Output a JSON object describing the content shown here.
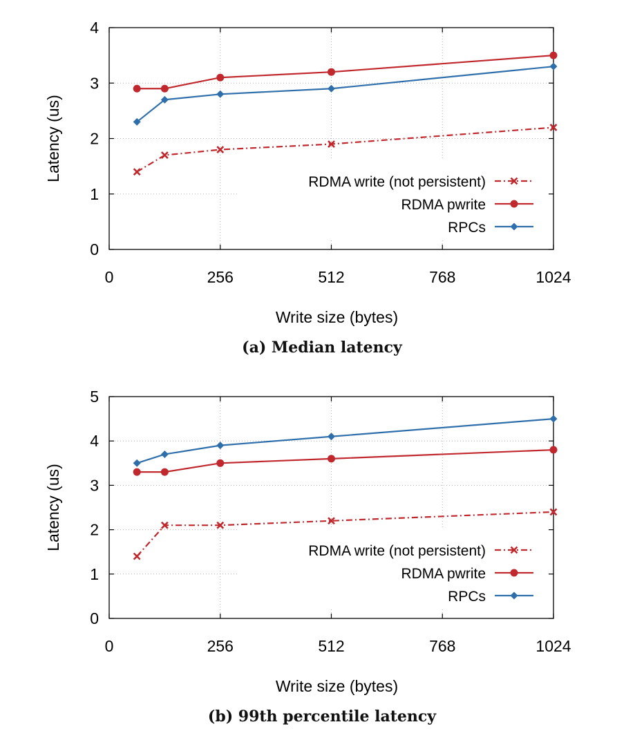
{
  "chart_data": [
    {
      "type": "line",
      "caption": "(a) Median latency",
      "xlabel": "Write size (bytes)",
      "ylabel": "Latency (us)",
      "xlim": [
        0,
        1024
      ],
      "ylim": [
        0,
        4
      ],
      "xticks": [
        "0",
        "256",
        "512",
        "768",
        "1024"
      ],
      "yticks": [
        "0",
        "1",
        "2",
        "3",
        "4"
      ],
      "grid": true,
      "legend_position": "right",
      "series": [
        {
          "name": "RDMA write (not persistent)",
          "color": "#c0282d",
          "marker": "x",
          "dash": "dashdot",
          "x": [
            64,
            128,
            256,
            512,
            1024
          ],
          "values": [
            1.4,
            1.7,
            1.8,
            1.9,
            2.2
          ]
        },
        {
          "name": "RDMA pwrite",
          "color": "#c0282d",
          "marker": "circle",
          "dash": "solid",
          "x": [
            64,
            128,
            256,
            512,
            1024
          ],
          "values": [
            2.9,
            2.9,
            3.1,
            3.2,
            3.5
          ]
        },
        {
          "name": "RPCs",
          "color": "#2e6fab",
          "marker": "diamond",
          "dash": "solid",
          "x": [
            64,
            128,
            256,
            512,
            1024
          ],
          "values": [
            2.3,
            2.7,
            2.8,
            2.9,
            3.3
          ]
        }
      ]
    },
    {
      "type": "line",
      "caption": "(b) 99th percentile latency",
      "xlabel": "Write size (bytes)",
      "ylabel": "Latency (us)",
      "xlim": [
        0,
        1024
      ],
      "ylim": [
        0,
        5
      ],
      "xticks": [
        "0",
        "256",
        "512",
        "768",
        "1024"
      ],
      "yticks": [
        "0",
        "1",
        "2",
        "3",
        "4",
        "5"
      ],
      "grid": true,
      "legend_position": "right",
      "series": [
        {
          "name": "RDMA write (not persistent)",
          "color": "#c0282d",
          "marker": "x",
          "dash": "dashdot",
          "x": [
            64,
            128,
            256,
            512,
            1024
          ],
          "values": [
            1.4,
            2.1,
            2.1,
            2.2,
            2.4
          ]
        },
        {
          "name": "RDMA pwrite",
          "color": "#c0282d",
          "marker": "circle",
          "dash": "solid",
          "x": [
            64,
            128,
            256,
            512,
            1024
          ],
          "values": [
            3.3,
            3.3,
            3.5,
            3.6,
            3.8
          ]
        },
        {
          "name": "RPCs",
          "color": "#2e6fab",
          "marker": "diamond",
          "dash": "solid",
          "x": [
            64,
            128,
            256,
            512,
            1024
          ],
          "values": [
            3.5,
            3.7,
            3.9,
            4.1,
            4.5
          ]
        }
      ]
    }
  ]
}
